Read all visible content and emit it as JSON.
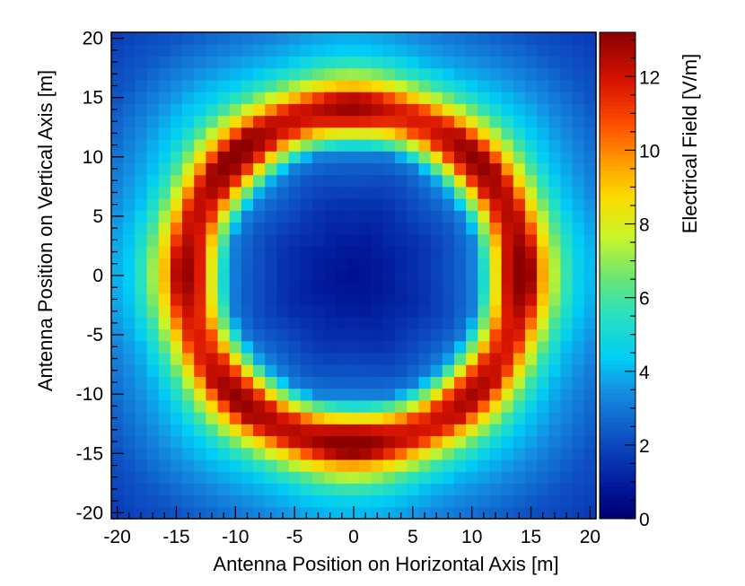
{
  "chart_data": {
    "type": "heatmap",
    "title": "",
    "xlabel": "Antenna Position on Horizontal Axis [m]",
    "ylabel": "Antenna Position on Vertical Axis [m]",
    "zlabel": "Electrical Field [V/m]",
    "xlim": [
      -20.5,
      20.5
    ],
    "ylim": [
      -20.5,
      20.5
    ],
    "zlim": [
      0,
      13.2
    ],
    "bin_width": 1,
    "x_ticks": [
      "-20",
      "-15",
      "-10",
      "-5",
      "0",
      "5",
      "10",
      "15",
      "20"
    ],
    "y_ticks": [
      "-20",
      "-15",
      "-10",
      "-5",
      "0",
      "5",
      "10",
      "15",
      "20"
    ],
    "z_ticks": [
      "0",
      "2",
      "4",
      "6",
      "8",
      "10",
      "12"
    ],
    "colormap": "rainbow (dark blue to dark red)",
    "field_model": {
      "description": "radially symmetric field, value vs distance from center (m)",
      "radius": [
        0,
        3,
        6,
        9,
        10.5,
        11.5,
        12.2,
        13,
        14,
        15,
        16,
        17.5,
        19,
        21,
        23,
        25,
        29
      ],
      "value": [
        0.6,
        1.0,
        1.5,
        2.4,
        3.3,
        6.5,
        8.5,
        11.5,
        12.7,
        12.2,
        9.0,
        6.0,
        4.3,
        3.5,
        2.8,
        2.2,
        1.6
      ]
    }
  }
}
